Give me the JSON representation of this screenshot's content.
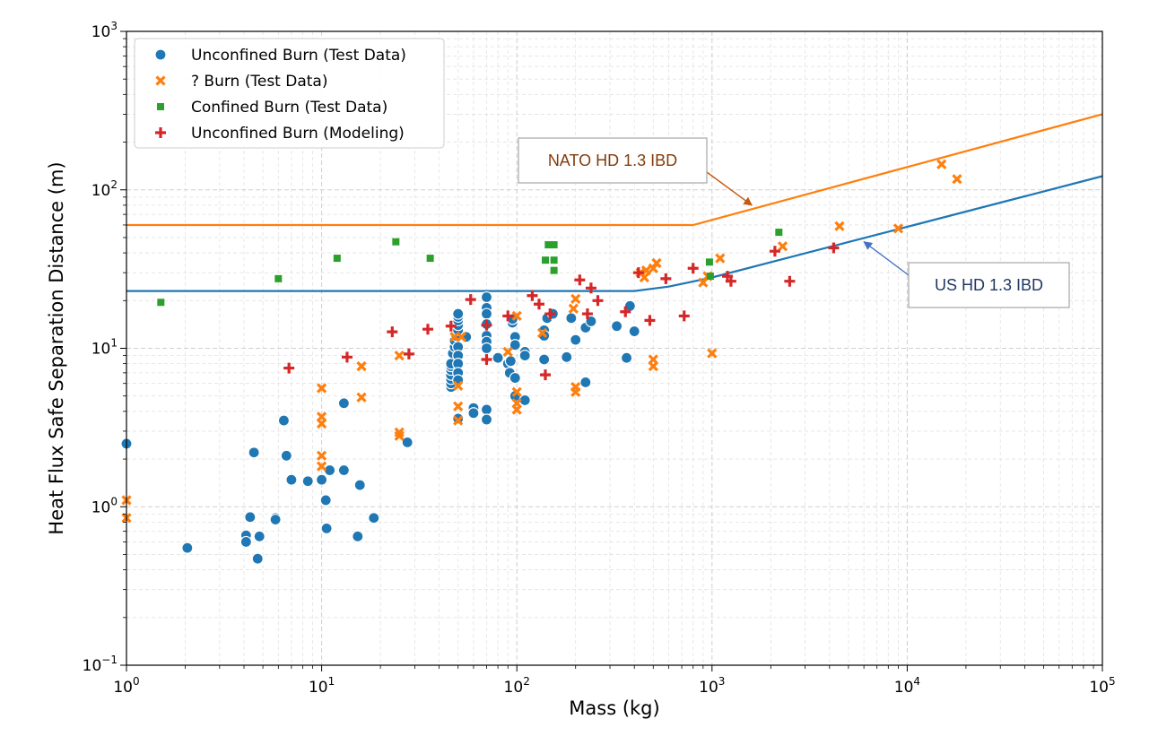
{
  "chart_data": {
    "type": "scatter",
    "xlabel": "Mass (kg)",
    "ylabel": "Heat Flux Safe Separation Distance (m)",
    "xscale": "log",
    "yscale": "log",
    "xlim": [
      1,
      100000
    ],
    "ylim": [
      0.1,
      1000
    ],
    "grid": "on (major and minor)",
    "legend_position": "upper-left",
    "x_tick_labels": [
      {
        "base": "10",
        "exp": "0"
      },
      {
        "base": "10",
        "exp": "1"
      },
      {
        "base": "10",
        "exp": "2"
      },
      {
        "base": "10",
        "exp": "3"
      },
      {
        "base": "10",
        "exp": "4"
      },
      {
        "base": "10",
        "exp": "5"
      }
    ],
    "y_tick_labels": [
      {
        "base": "10",
        "exp": "−1"
      },
      {
        "base": "10",
        "exp": "0"
      },
      {
        "base": "10",
        "exp": "1"
      },
      {
        "base": "10",
        "exp": "2"
      },
      {
        "base": "10",
        "exp": "3"
      }
    ],
    "series": [
      {
        "name": "Unconfined Burn (Test Data)",
        "marker": "circle",
        "color": "#1f77b4",
        "points": [
          [
            1.0,
            2.5
          ],
          [
            2.05,
            0.55
          ],
          [
            4.1,
            0.66
          ],
          [
            4.1,
            0.6
          ],
          [
            4.3,
            0.86
          ],
          [
            4.5,
            2.2
          ],
          [
            4.7,
            0.47
          ],
          [
            4.8,
            0.65
          ],
          [
            5.8,
            0.85
          ],
          [
            5.8,
            0.83
          ],
          [
            6.4,
            3.5
          ],
          [
            6.6,
            2.1
          ],
          [
            7.0,
            1.48
          ],
          [
            8.5,
            1.45
          ],
          [
            10.0,
            1.48
          ],
          [
            10.5,
            1.1
          ],
          [
            10.6,
            0.73
          ],
          [
            11.0,
            1.7
          ],
          [
            13.0,
            4.5
          ],
          [
            13.0,
            1.7
          ],
          [
            15.3,
            0.65
          ],
          [
            15.7,
            1.37
          ],
          [
            18.5,
            0.85
          ],
          [
            27.5,
            2.55
          ],
          [
            46,
            5.7
          ],
          [
            46,
            6.0
          ],
          [
            46,
            6.4
          ],
          [
            46,
            6.8
          ],
          [
            46,
            7.3
          ],
          [
            46,
            7.7
          ],
          [
            46,
            8.0
          ],
          [
            47,
            9.3
          ],
          [
            48,
            10.2
          ],
          [
            48,
            11.2
          ],
          [
            49,
            12.0
          ],
          [
            50,
            13.0
          ],
          [
            50,
            14.0
          ],
          [
            50,
            15.0
          ],
          [
            50,
            15.8
          ],
          [
            50,
            16.5
          ],
          [
            50,
            10.2
          ],
          [
            50,
            9.0
          ],
          [
            50,
            8.0
          ],
          [
            50,
            7.0
          ],
          [
            50,
            6.3
          ],
          [
            50,
            3.6
          ],
          [
            55,
            11.8
          ],
          [
            60,
            4.2
          ],
          [
            60,
            3.9
          ],
          [
            70,
            21.0
          ],
          [
            70,
            18.0
          ],
          [
            70,
            16.5
          ],
          [
            70,
            14.2
          ],
          [
            70,
            12.0
          ],
          [
            70,
            11.0
          ],
          [
            70,
            10.0
          ],
          [
            70,
            4.1
          ],
          [
            70,
            3.55
          ],
          [
            80,
            8.7
          ],
          [
            90,
            8.0
          ],
          [
            92,
            7.0
          ],
          [
            93,
            8.3
          ],
          [
            95,
            14.5
          ],
          [
            95,
            15.3
          ],
          [
            98,
            11.8
          ],
          [
            98,
            10.5
          ],
          [
            98,
            6.5
          ],
          [
            98,
            5.0
          ],
          [
            110,
            9.5
          ],
          [
            110,
            9.0
          ],
          [
            110,
            4.7
          ],
          [
            138,
            13.0
          ],
          [
            138,
            12.0
          ],
          [
            138,
            8.5
          ],
          [
            143,
            15.5
          ],
          [
            153,
            16.5
          ],
          [
            180,
            8.8
          ],
          [
            190,
            15.5
          ],
          [
            200,
            11.3
          ],
          [
            225,
            13.5
          ],
          [
            225,
            6.1
          ],
          [
            240,
            14.8
          ],
          [
            325,
            13.8
          ],
          [
            365,
            8.7
          ],
          [
            380,
            18.5
          ],
          [
            400,
            12.8
          ]
        ]
      },
      {
        "name": "? Burn (Test Data)",
        "marker": "x",
        "color": "#ff7f0e",
        "points": [
          [
            1.0,
            1.1
          ],
          [
            1.0,
            0.85
          ],
          [
            10.0,
            5.6
          ],
          [
            10.0,
            3.7
          ],
          [
            10.0,
            3.35
          ],
          [
            10.0,
            2.1
          ],
          [
            10.0,
            1.8
          ],
          [
            16,
            7.7
          ],
          [
            16,
            4.9
          ],
          [
            25,
            9.0
          ],
          [
            25,
            2.95
          ],
          [
            25,
            2.8
          ],
          [
            48,
            11.8
          ],
          [
            50,
            5.8
          ],
          [
            50,
            4.3
          ],
          [
            50,
            3.5
          ],
          [
            52,
            11.8
          ],
          [
            90,
            9.5
          ],
          [
            100,
            16.0
          ],
          [
            100,
            5.3
          ],
          [
            100,
            4.5
          ],
          [
            100,
            4.1
          ],
          [
            135,
            12.5
          ],
          [
            195,
            17.8
          ],
          [
            200,
            20.5
          ],
          [
            200,
            5.7
          ],
          [
            200,
            5.3
          ],
          [
            430,
            30.0
          ],
          [
            450,
            28.0
          ],
          [
            460,
            31.0
          ],
          [
            500,
            32.0
          ],
          [
            500,
            8.5
          ],
          [
            500,
            7.7
          ],
          [
            520,
            34.5
          ],
          [
            900,
            26.0
          ],
          [
            950,
            28.5
          ],
          [
            1000,
            9.3
          ],
          [
            1100,
            37.0
          ],
          [
            2300,
            44.0
          ],
          [
            4500,
            59.0
          ],
          [
            9000,
            57.0
          ],
          [
            15000,
            145.0
          ],
          [
            18000,
            117.0
          ]
        ]
      },
      {
        "name": "Confined Burn (Test Data)",
        "marker": "square",
        "color": "#2ca02c",
        "points": [
          [
            1.5,
            19.5
          ],
          [
            6.0,
            27.5
          ],
          [
            12.0,
            37.0
          ],
          [
            24.0,
            47.0
          ],
          [
            36.0,
            37.0
          ],
          [
            140.0,
            36.0
          ],
          [
            145.0,
            45.0
          ],
          [
            155.0,
            45.0
          ],
          [
            155.0,
            36.0
          ],
          [
            155.0,
            31.0
          ],
          [
            970,
            35.0
          ],
          [
            980,
            28.5
          ],
          [
            2200,
            54.0
          ]
        ]
      },
      {
        "name": "Unconfined Burn (Modeling)",
        "marker": "plus",
        "color": "#d62728",
        "points": [
          [
            6.8,
            7.5
          ],
          [
            13.5,
            8.8
          ],
          [
            23.0,
            12.7
          ],
          [
            28.0,
            9.2
          ],
          [
            35.0,
            13.2
          ],
          [
            46.0,
            13.8
          ],
          [
            58.0,
            20.3
          ],
          [
            70.0,
            14.0
          ],
          [
            70.0,
            8.5
          ],
          [
            90.0,
            16.0
          ],
          [
            120.0,
            21.5
          ],
          [
            130.0,
            19.0
          ],
          [
            140.0,
            6.8
          ],
          [
            148.0,
            16.5
          ],
          [
            210.0,
            27.0
          ],
          [
            230.0,
            16.5
          ],
          [
            240.0,
            24.0
          ],
          [
            260.0,
            20.0
          ],
          [
            360.0,
            17.0
          ],
          [
            420.0,
            30.0
          ],
          [
            480.0,
            15.0
          ],
          [
            580.0,
            27.5
          ],
          [
            720.0,
            16.0
          ],
          [
            800.0,
            32.0
          ],
          [
            1200.0,
            28.5
          ],
          [
            1250.0,
            26.5
          ],
          [
            2100.0,
            41.0
          ],
          [
            2500.0,
            26.5
          ],
          [
            4200.0,
            43.0
          ]
        ]
      },
      {
        "name": "NATO HD 1.3 IBD",
        "type": "line",
        "color": "#ff7f0e",
        "points": [
          [
            1,
            60
          ],
          [
            800,
            60
          ],
          [
            100000,
            300
          ]
        ]
      },
      {
        "name": "US HD 1.3 IBD",
        "type": "line",
        "color": "#1f77b4",
        "points": [
          [
            1,
            23
          ],
          [
            400,
            23
          ],
          [
            600,
            24.5
          ],
          [
            1000,
            28
          ],
          [
            100000,
            122
          ]
        ]
      }
    ],
    "annotations": [
      {
        "text": "NATO HD 1.3 IBD",
        "color": "#843c0c",
        "arrow_color": "#c55a11",
        "points_to": [
          1600,
          80
        ]
      },
      {
        "text": "US HD 1.3 IBD",
        "color": "#1f3864",
        "arrow_color": "#4472c4",
        "points_to": [
          6000,
          47
        ]
      }
    ]
  }
}
